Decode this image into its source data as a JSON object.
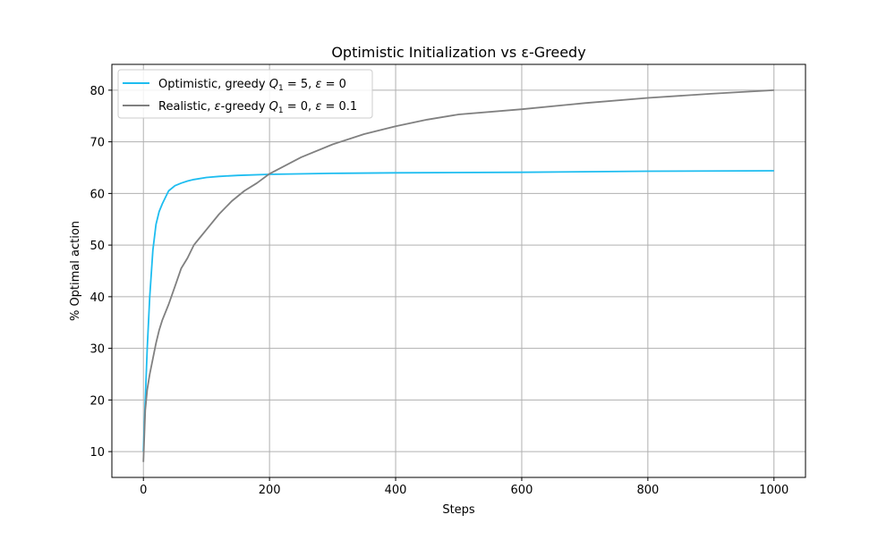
{
  "chart_data": {
    "type": "line",
    "title": "Optimistic Initialization vs ε-Greedy",
    "xlabel": "Steps",
    "ylabel": "% Optimal action",
    "xlim": [
      -50,
      1050
    ],
    "ylim": [
      5,
      85
    ],
    "xticks": [
      0,
      200,
      400,
      600,
      800,
      1000
    ],
    "yticks": [
      10,
      20,
      30,
      40,
      50,
      60,
      70,
      80
    ],
    "grid": true,
    "legend_position": "top-left",
    "series": [
      {
        "name": "Optimistic, greedy Q1 = 5, ε = 0",
        "color": "#1EBDF0",
        "legend_parts": [
          {
            "t": "Optimistic, greedy "
          },
          {
            "t": "Q",
            "i": true
          },
          {
            "t": "1",
            "sub": true
          },
          {
            "t": " = 5,  "
          },
          {
            "t": "ε",
            "i": true
          },
          {
            "t": " = 0"
          }
        ],
        "x": [
          0,
          3,
          6,
          10,
          15,
          20,
          25,
          30,
          40,
          50,
          60,
          70,
          80,
          100,
          120,
          150,
          200,
          300,
          400,
          600,
          800,
          1000
        ],
        "y": [
          10,
          20,
          30,
          40,
          49,
          54,
          56.5,
          58,
          60.5,
          61.5,
          62,
          62.4,
          62.7,
          63.1,
          63.3,
          63.5,
          63.7,
          63.9,
          64,
          64.1,
          64.3,
          64.4
        ]
      },
      {
        "name": "Realistic, ε-greedy Q1 = 0, ε = 0.1",
        "color": "#808080",
        "legend_parts": [
          {
            "t": "Realistic, "
          },
          {
            "t": "ε",
            "i": true
          },
          {
            "t": "-greedy "
          },
          {
            "t": "Q",
            "i": true
          },
          {
            "t": "1",
            "sub": true
          },
          {
            "t": " = 0,  "
          },
          {
            "t": "ε",
            "i": true
          },
          {
            "t": " = 0.1"
          }
        ],
        "x": [
          0,
          3,
          6,
          10,
          15,
          20,
          25,
          30,
          40,
          50,
          60,
          70,
          80,
          90,
          100,
          120,
          140,
          160,
          180,
          200,
          250,
          300,
          350,
          400,
          450,
          500,
          600,
          700,
          800,
          900,
          1000
        ],
        "y": [
          8,
          18,
          22,
          25,
          28,
          31,
          33.5,
          35.5,
          38.5,
          42,
          45.5,
          47.5,
          50,
          51.5,
          53,
          56,
          58.5,
          60.5,
          62,
          63.8,
          67,
          69.5,
          71.5,
          73,
          74.3,
          75.3,
          76.3,
          77.5,
          78.5,
          79.3,
          80
        ]
      }
    ]
  }
}
